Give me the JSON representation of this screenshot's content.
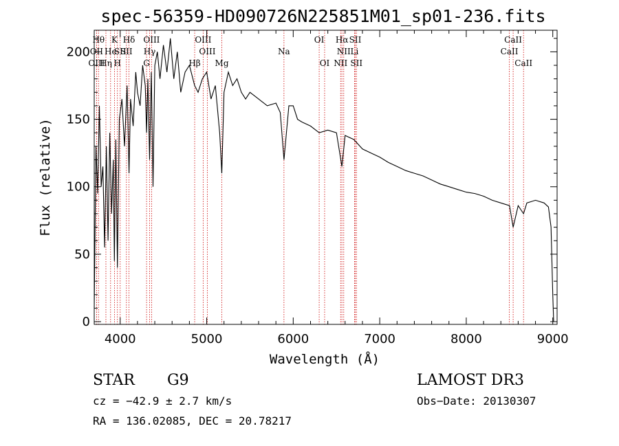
{
  "chart_data": {
    "type": "line",
    "title": "spec-56359-HD090726N225851M01_sp01-236.fits",
    "xlabel": "Wavelength (Å)",
    "ylabel": "Flux (relative)",
    "xlim": [
      3700,
      9050
    ],
    "ylim": [
      -2,
      216
    ],
    "x_ticks": [
      4000,
      5000,
      6000,
      7000,
      8000,
      9000
    ],
    "y_ticks": [
      0,
      50,
      100,
      150,
      200
    ],
    "grid": false,
    "spectrum": {
      "x": [
        3700,
        3720,
        3740,
        3760,
        3780,
        3800,
        3820,
        3840,
        3860,
        3880,
        3900,
        3920,
        3933,
        3950,
        3968,
        3990,
        4020,
        4050,
        4080,
        4102,
        4120,
        4150,
        4180,
        4200,
        4230,
        4260,
        4290,
        4305,
        4320,
        4340,
        4360,
        4380,
        4400,
        4430,
        4460,
        4500,
        4540,
        4580,
        4620,
        4660,
        4700,
        4750,
        4800,
        4861,
        4900,
        4950,
        5000,
        5050,
        5100,
        5150,
        5175,
        5200,
        5250,
        5300,
        5350,
        5400,
        5450,
        5500,
        5600,
        5700,
        5800,
        5850,
        5893,
        5950,
        6000,
        6050,
        6100,
        6200,
        6300,
        6400,
        6500,
        6563,
        6600,
        6700,
        6800,
        6900,
        7000,
        7100,
        7200,
        7300,
        7400,
        7500,
        7600,
        7700,
        7800,
        7900,
        8000,
        8100,
        8200,
        8300,
        8400,
        8500,
        8542,
        8600,
        8662,
        8700,
        8800,
        8900,
        8950,
        8980,
        9000,
        9010
      ],
      "y": [
        10,
        130,
        95,
        160,
        100,
        115,
        55,
        130,
        60,
        140,
        80,
        120,
        45,
        135,
        40,
        150,
        165,
        130,
        175,
        110,
        165,
        145,
        185,
        170,
        160,
        190,
        175,
        140,
        180,
        120,
        185,
        100,
        190,
        200,
        180,
        205,
        185,
        210,
        180,
        200,
        170,
        185,
        190,
        175,
        170,
        180,
        185,
        165,
        175,
        140,
        110,
        170,
        185,
        175,
        180,
        170,
        165,
        170,
        165,
        160,
        162,
        155,
        120,
        160,
        160,
        150,
        148,
        145,
        140,
        142,
        140,
        115,
        138,
        135,
        128,
        125,
        122,
        118,
        115,
        112,
        110,
        108,
        105,
        102,
        100,
        98,
        96,
        95,
        93,
        90,
        88,
        86,
        70,
        86,
        80,
        88,
        90,
        88,
        85,
        70,
        20,
        0
      ]
    },
    "lines": [
      {
        "label": "Hθ",
        "x": 3750,
        "row": 0
      },
      {
        "label": "OII",
        "x": 3727,
        "row": 1
      },
      {
        "label": "OIII",
        "x": 3727,
        "row": 2
      },
      {
        "label": "Hη",
        "x": 3835,
        "row": 2
      },
      {
        "label": "He",
        "x": 3889,
        "row": 1
      },
      {
        "label": "K",
        "x": 3934,
        "row": 0
      },
      {
        "label": "SII",
        "x": 4000,
        "row": 1
      },
      {
        "label": "H",
        "x": 3968,
        "row": 2
      },
      {
        "label": "Hδ",
        "x": 4102,
        "row": 0
      },
      {
        "label": "SII",
        "x": 4072,
        "row": 1
      },
      {
        "label": "OIII",
        "x": 4363,
        "row": 0
      },
      {
        "label": "Hγ",
        "x": 4340,
        "row": 1
      },
      {
        "label": "G",
        "x": 4305,
        "row": 2
      },
      {
        "label": "OIII",
        "x": 4959,
        "row": 0
      },
      {
        "label": "OIII",
        "x": 5007,
        "row": 1
      },
      {
        "label": "Hβ",
        "x": 4861,
        "row": 2
      },
      {
        "label": "Mg",
        "x": 5175,
        "row": 2
      },
      {
        "label": "Na",
        "x": 5893,
        "row": 1
      },
      {
        "label": "OI",
        "x": 6300,
        "row": 0
      },
      {
        "label": "OI",
        "x": 6363,
        "row": 2
      },
      {
        "label": "Hα",
        "x": 6563,
        "row": 0
      },
      {
        "label": "NII",
        "x": 6584,
        "row": 1
      },
      {
        "label": "NII",
        "x": 6548,
        "row": 2
      },
      {
        "label": "SII",
        "x": 6717,
        "row": 0
      },
      {
        "label": "Li",
        "x": 6708,
        "row": 1
      },
      {
        "label": "SII",
        "x": 6731,
        "row": 2
      },
      {
        "label": "CaII",
        "x": 8542,
        "row": 0
      },
      {
        "label": "CaII",
        "x": 8498,
        "row": 1
      },
      {
        "label": "CaII",
        "x": 8662,
        "row": 2
      }
    ]
  },
  "info": {
    "object_type": "STAR",
    "subclass": "G9",
    "survey": "LAMOST DR3",
    "cz": "cz = −42.9 ± 2.7 km/s",
    "obs_date": "Obs−Date: 20130307",
    "coords": "RA = 136.02085, DEC =  20.78217"
  },
  "colors": {
    "spectrum": "#000000",
    "line_marker": "#cc0000"
  }
}
